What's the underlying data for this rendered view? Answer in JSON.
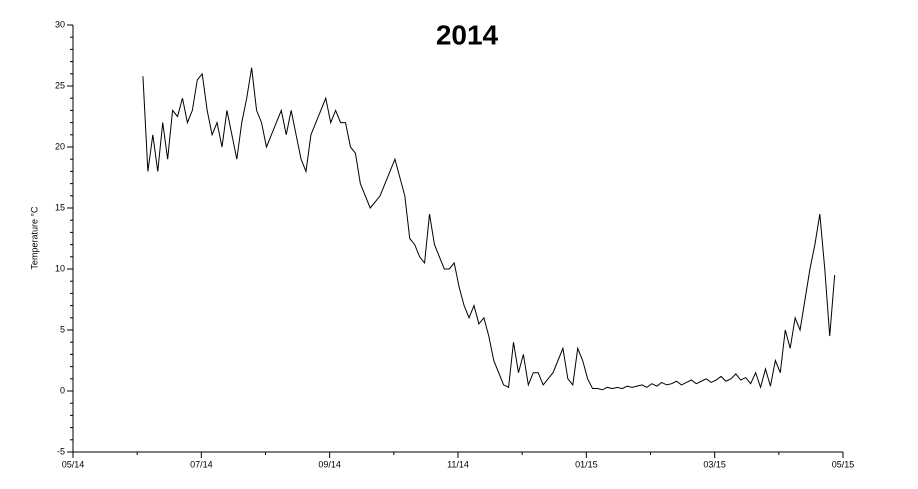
{
  "chart_data": {
    "type": "line",
    "title": "2014",
    "y_label": "Temperature °C",
    "xlim": [
      0,
      12
    ],
    "xticks": [
      {
        "value": 0,
        "label": "05/14"
      },
      {
        "value": 2,
        "label": "07/14"
      },
      {
        "value": 4,
        "label": "09/14"
      },
      {
        "value": 6,
        "label": "11/14"
      },
      {
        "value": 8,
        "label": "01/15"
      },
      {
        "value": 10,
        "label": "03/15"
      },
      {
        "value": 12,
        "label": "05/15"
      }
    ],
    "ylim": [
      -5,
      30
    ],
    "yticks": [
      -5,
      0,
      5,
      10,
      15,
      20,
      25,
      30
    ],
    "grid": false,
    "x": [
      1.09,
      1.167,
      1.244,
      1.321,
      1.398,
      1.475,
      1.552,
      1.629,
      1.706,
      1.783,
      1.86,
      1.937,
      2.014,
      2.091,
      2.168,
      2.245,
      2.322,
      2.399,
      2.476,
      2.553,
      2.63,
      2.707,
      2.784,
      2.861,
      2.938,
      3.015,
      3.092,
      3.169,
      3.246,
      3.323,
      3.4,
      3.477,
      3.554,
      3.631,
      3.708,
      3.785,
      3.862,
      3.939,
      4.016,
      4.093,
      4.17,
      4.247,
      4.324,
      4.401,
      4.478,
      4.555,
      4.632,
      4.709,
      4.786,
      4.863,
      4.94,
      5.017,
      5.094,
      5.171,
      5.248,
      5.325,
      5.402,
      5.479,
      5.556,
      5.633,
      5.71,
      5.787,
      5.864,
      5.941,
      6.018,
      6.095,
      6.172,
      6.249,
      6.326,
      6.403,
      6.48,
      6.557,
      6.634,
      6.711,
      6.788,
      6.865,
      6.942,
      7.019,
      7.096,
      7.173,
      7.25,
      7.327,
      7.404,
      7.481,
      7.558,
      7.635,
      7.712,
      7.789,
      7.866,
      7.943,
      8.02,
      8.097,
      8.174,
      8.251,
      8.328,
      8.405,
      8.482,
      8.559,
      8.636,
      8.713,
      8.79,
      8.867,
      8.944,
      9.021,
      9.098,
      9.175,
      9.252,
      9.329,
      9.406,
      9.483,
      9.56,
      9.637,
      9.714,
      9.791,
      9.868,
      9.945,
      10.022,
      10.099,
      10.176,
      10.253,
      10.33,
      10.407,
      10.484,
      10.561,
      10.638,
      10.715,
      10.792,
      10.869,
      10.946,
      11.023,
      11.1,
      11.177,
      11.254,
      11.331,
      11.408,
      11.485,
      11.562,
      11.639,
      11.716,
      11.793,
      11.87
    ],
    "series": [
      {
        "color": "#000000",
        "values": [
          25.8,
          18,
          21,
          18,
          22,
          19,
          23,
          22.5,
          24,
          22,
          23,
          25.5,
          26,
          23,
          21,
          22,
          20,
          23,
          21,
          19,
          22,
          24,
          26.5,
          23,
          22,
          20,
          21,
          22,
          23,
          21,
          23,
          21,
          19,
          18,
          21,
          22,
          23,
          24,
          22,
          23,
          22,
          22,
          20,
          19.5,
          17,
          16,
          15,
          15.5,
          16,
          17,
          18,
          19,
          17.5,
          16,
          12.5,
          12,
          11,
          10.5,
          14.5,
          12,
          11,
          10,
          10,
          10.5,
          8.5,
          7,
          6,
          7,
          5.5,
          6,
          4.5,
          2.5,
          1.5,
          0.5,
          0.3,
          4,
          1.5,
          3,
          0.5,
          1.5,
          1.5,
          0.5,
          1,
          1.5,
          2.5,
          3.5,
          1,
          0.5,
          3.5,
          2.5,
          1,
          0.2,
          0.2,
          0.1,
          0.3,
          0.2,
          0.3,
          0.2,
          0.4,
          0.3,
          0.4,
          0.5,
          0.3,
          0.6,
          0.4,
          0.7,
          0.5,
          0.6,
          0.8,
          0.5,
          0.7,
          0.9,
          0.6,
          0.8,
          1.0,
          0.7,
          0.9,
          1.2,
          0.8,
          1.0,
          1.4,
          0.9,
          1.1,
          0.6,
          1.5,
          0.3,
          1.8,
          0.4,
          2.5,
          1.5,
          5,
          3.5,
          6,
          5,
          7.5,
          10,
          12,
          14.5,
          10,
          4.5,
          9.5
        ]
      }
    ]
  }
}
